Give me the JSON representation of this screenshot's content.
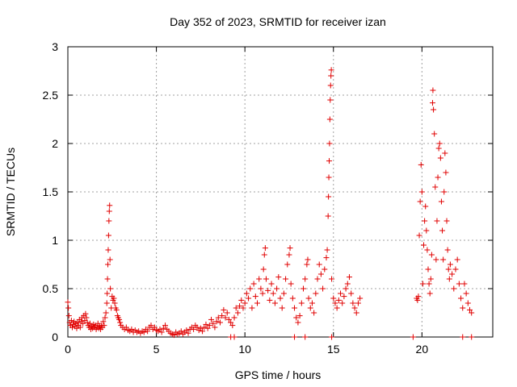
{
  "chart_data": {
    "type": "scatter",
    "title": "Day 352 of 2023, SRMTID for receiver izan",
    "xlabel": "GPS time / hours",
    "ylabel": "SRMTID / TECUs",
    "xlim": [
      0,
      24
    ],
    "ylim": [
      0,
      3
    ],
    "xticks": [
      0,
      5,
      10,
      15,
      20
    ],
    "xtick_labels": [
      "0",
      "5",
      "10",
      "15",
      "20"
    ],
    "yticks": [
      0,
      0.5,
      1,
      1.5,
      2,
      2.5,
      3
    ],
    "ytick_labels": [
      "0",
      "0.5",
      "1",
      "1.5",
      "2",
      "2.5",
      "3"
    ],
    "grid": true,
    "marker": "+",
    "color": "#e00000",
    "series": [
      {
        "name": "SRMTID",
        "points": [
          [
            0.0,
            0.36
          ],
          [
            0.03,
            0.3
          ],
          [
            0.06,
            0.22
          ],
          [
            0.1,
            0.15
          ],
          [
            0.15,
            0.12
          ],
          [
            0.2,
            0.17
          ],
          [
            0.25,
            0.1
          ],
          [
            0.3,
            0.13
          ],
          [
            0.35,
            0.16
          ],
          [
            0.4,
            0.11
          ],
          [
            0.45,
            0.14
          ],
          [
            0.5,
            0.09
          ],
          [
            0.55,
            0.15
          ],
          [
            0.6,
            0.12
          ],
          [
            0.65,
            0.18
          ],
          [
            0.7,
            0.1
          ],
          [
            0.75,
            0.16
          ],
          [
            0.8,
            0.2
          ],
          [
            0.85,
            0.14
          ],
          [
            0.9,
            0.22
          ],
          [
            0.95,
            0.17
          ],
          [
            1.0,
            0.24
          ],
          [
            1.05,
            0.2
          ],
          [
            1.1,
            0.15
          ],
          [
            1.15,
            0.12
          ],
          [
            1.2,
            0.1
          ],
          [
            1.25,
            0.14
          ],
          [
            1.3,
            0.08
          ],
          [
            1.35,
            0.11
          ],
          [
            1.4,
            0.09
          ],
          [
            1.45,
            0.13
          ],
          [
            1.5,
            0.1
          ],
          [
            1.55,
            0.12
          ],
          [
            1.6,
            0.08
          ],
          [
            1.65,
            0.1
          ],
          [
            1.7,
            0.14
          ],
          [
            1.75,
            0.09
          ],
          [
            1.8,
            0.11
          ],
          [
            1.85,
            0.08
          ],
          [
            1.9,
            0.12
          ],
          [
            1.95,
            0.1
          ],
          [
            2.0,
            0.16
          ],
          [
            2.05,
            0.12
          ],
          [
            2.1,
            0.2
          ],
          [
            2.15,
            0.25
          ],
          [
            2.2,
            0.35
          ],
          [
            2.22,
            0.45
          ],
          [
            2.24,
            0.6
          ],
          [
            2.26,
            0.75
          ],
          [
            2.28,
            0.9
          ],
          [
            2.3,
            1.05
          ],
          [
            2.32,
            1.2
          ],
          [
            2.34,
            1.3
          ],
          [
            2.36,
            1.36
          ],
          [
            2.38,
            0.8
          ],
          [
            2.4,
            0.5
          ],
          [
            2.45,
            0.3
          ],
          [
            2.5,
            0.42
          ],
          [
            2.55,
            0.38
          ],
          [
            2.6,
            0.4
          ],
          [
            2.65,
            0.35
          ],
          [
            2.7,
            0.3
          ],
          [
            2.75,
            0.28
          ],
          [
            2.8,
            0.22
          ],
          [
            2.85,
            0.2
          ],
          [
            2.9,
            0.18
          ],
          [
            2.95,
            0.15
          ],
          [
            3.0,
            0.12
          ],
          [
            3.1,
            0.1
          ],
          [
            3.2,
            0.08
          ],
          [
            3.3,
            0.1
          ],
          [
            3.4,
            0.07
          ],
          [
            3.5,
            0.06
          ],
          [
            3.6,
            0.08
          ],
          [
            3.7,
            0.05
          ],
          [
            3.8,
            0.07
          ],
          [
            3.9,
            0.05
          ],
          [
            4.0,
            0.06
          ],
          [
            4.1,
            0.04
          ],
          [
            4.2,
            0.06
          ],
          [
            4.3,
            0.05
          ],
          [
            4.4,
            0.08
          ],
          [
            4.5,
            0.06
          ],
          [
            4.6,
            0.1
          ],
          [
            4.7,
            0.12
          ],
          [
            4.8,
            0.08
          ],
          [
            4.9,
            0.1
          ],
          [
            5.0,
            0.07
          ],
          [
            5.1,
            0.06
          ],
          [
            5.2,
            0.08
          ],
          [
            5.3,
            0.05
          ],
          [
            5.4,
            0.09
          ],
          [
            5.5,
            0.12
          ],
          [
            5.6,
            0.08
          ],
          [
            5.7,
            0.06
          ],
          [
            5.8,
            0.04
          ],
          [
            5.9,
            0.03
          ],
          [
            6.0,
            0.02
          ],
          [
            6.1,
            0.05
          ],
          [
            6.2,
            0.03
          ],
          [
            6.3,
            0.04
          ],
          [
            6.4,
            0.06
          ],
          [
            6.5,
            0.03
          ],
          [
            6.6,
            0.05
          ],
          [
            6.7,
            0.07
          ],
          [
            6.8,
            0.04
          ],
          [
            6.9,
            0.08
          ],
          [
            7.0,
            0.1
          ],
          [
            7.1,
            0.08
          ],
          [
            7.2,
            0.12
          ],
          [
            7.3,
            0.1
          ],
          [
            7.4,
            0.07
          ],
          [
            7.5,
            0.09
          ],
          [
            7.6,
            0.06
          ],
          [
            7.7,
            0.1
          ],
          [
            7.8,
            0.13
          ],
          [
            7.9,
            0.09
          ],
          [
            8.0,
            0.12
          ],
          [
            8.1,
            0.18
          ],
          [
            8.2,
            0.14
          ],
          [
            8.3,
            0.1
          ],
          [
            8.4,
            0.16
          ],
          [
            8.5,
            0.2
          ],
          [
            8.6,
            0.15
          ],
          [
            8.7,
            0.22
          ],
          [
            8.8,
            0.28
          ],
          [
            8.9,
            0.2
          ],
          [
            9.0,
            0.25
          ],
          [
            9.1,
            0.18
          ],
          [
            9.2,
            0.15
          ],
          [
            9.3,
            0.12
          ],
          [
            9.4,
            0.2
          ],
          [
            9.5,
            0.3
          ],
          [
            9.6,
            0.25
          ],
          [
            9.7,
            0.32
          ],
          [
            9.8,
            0.38
          ],
          [
            9.9,
            0.3
          ],
          [
            10.0,
            0.35
          ],
          [
            10.1,
            0.45
          ],
          [
            10.2,
            0.4
          ],
          [
            10.3,
            0.5
          ],
          [
            10.4,
            0.3
          ],
          [
            10.5,
            0.55
          ],
          [
            10.6,
            0.42
          ],
          [
            10.7,
            0.35
          ],
          [
            10.8,
            0.6
          ],
          [
            10.9,
            0.5
          ],
          [
            11.0,
            0.45
          ],
          [
            11.05,
            0.7
          ],
          [
            11.1,
            0.85
          ],
          [
            11.15,
            0.92
          ],
          [
            11.2,
            0.6
          ],
          [
            11.3,
            0.48
          ],
          [
            11.4,
            0.38
          ],
          [
            11.5,
            0.55
          ],
          [
            11.6,
            0.45
          ],
          [
            11.7,
            0.35
          ],
          [
            11.8,
            0.5
          ],
          [
            11.9,
            0.62
          ],
          [
            12.0,
            0.4
          ],
          [
            12.1,
            0.3
          ],
          [
            12.2,
            0.45
          ],
          [
            12.3,
            0.6
          ],
          [
            12.4,
            0.75
          ],
          [
            12.5,
            0.85
          ],
          [
            12.55,
            0.92
          ],
          [
            12.6,
            0.55
          ],
          [
            12.7,
            0.4
          ],
          [
            12.8,
            0.3
          ],
          [
            12.9,
            0.2
          ],
          [
            13.0,
            0.15
          ],
          [
            13.1,
            0.22
          ],
          [
            13.2,
            0.35
          ],
          [
            13.3,
            0.5
          ],
          [
            13.4,
            0.6
          ],
          [
            13.5,
            0.75
          ],
          [
            13.55,
            0.8
          ],
          [
            13.6,
            0.4
          ],
          [
            13.7,
            0.3
          ],
          [
            13.8,
            0.35
          ],
          [
            13.9,
            0.25
          ],
          [
            14.0,
            0.45
          ],
          [
            14.1,
            0.6
          ],
          [
            14.2,
            0.75
          ],
          [
            14.3,
            0.65
          ],
          [
            14.4,
            0.5
          ],
          [
            14.5,
            0.7
          ],
          [
            14.6,
            0.82
          ],
          [
            14.65,
            0.9
          ],
          [
            14.7,
            1.25
          ],
          [
            14.72,
            1.45
          ],
          [
            14.74,
            1.65
          ],
          [
            14.76,
            1.82
          ],
          [
            14.78,
            2.0
          ],
          [
            14.8,
            2.25
          ],
          [
            14.82,
            2.45
          ],
          [
            14.84,
            2.6
          ],
          [
            14.86,
            2.7
          ],
          [
            14.88,
            2.76
          ],
          [
            14.9,
            0.6
          ],
          [
            15.0,
            0.4
          ],
          [
            15.1,
            0.35
          ],
          [
            15.2,
            0.3
          ],
          [
            15.3,
            0.38
          ],
          [
            15.4,
            0.45
          ],
          [
            15.5,
            0.35
          ],
          [
            15.6,
            0.42
          ],
          [
            15.7,
            0.5
          ],
          [
            15.8,
            0.55
          ],
          [
            15.9,
            0.62
          ],
          [
            16.0,
            0.45
          ],
          [
            16.1,
            0.35
          ],
          [
            16.2,
            0.3
          ],
          [
            16.3,
            0.25
          ],
          [
            16.4,
            0.35
          ],
          [
            16.5,
            0.4
          ],
          [
            19.7,
            0.4
          ],
          [
            19.75,
            0.38
          ],
          [
            19.8,
            0.42
          ],
          [
            19.85,
            1.05
          ],
          [
            19.9,
            1.4
          ],
          [
            19.95,
            1.78
          ],
          [
            20.0,
            1.5
          ],
          [
            20.05,
            0.55
          ],
          [
            20.1,
            0.95
          ],
          [
            20.15,
            1.2
          ],
          [
            20.2,
            1.35
          ],
          [
            20.25,
            1.1
          ],
          [
            20.3,
            0.9
          ],
          [
            20.35,
            0.7
          ],
          [
            20.4,
            0.55
          ],
          [
            20.45,
            0.45
          ],
          [
            20.5,
            0.6
          ],
          [
            20.55,
            0.85
          ],
          [
            20.6,
            2.42
          ],
          [
            20.62,
            2.55
          ],
          [
            20.65,
            2.35
          ],
          [
            20.7,
            2.1
          ],
          [
            20.75,
            1.55
          ],
          [
            20.8,
            0.8
          ],
          [
            20.85,
            1.2
          ],
          [
            20.9,
            1.65
          ],
          [
            20.95,
            1.95
          ],
          [
            21.0,
            2.0
          ],
          [
            21.05,
            1.85
          ],
          [
            21.1,
            1.4
          ],
          [
            21.15,
            1.1
          ],
          [
            21.2,
            0.8
          ],
          [
            21.25,
            1.5
          ],
          [
            21.3,
            1.9
          ],
          [
            21.35,
            1.7
          ],
          [
            21.4,
            1.2
          ],
          [
            21.45,
            0.9
          ],
          [
            21.5,
            0.7
          ],
          [
            21.55,
            0.6
          ],
          [
            21.6,
            0.75
          ],
          [
            21.7,
            0.65
          ],
          [
            21.8,
            0.5
          ],
          [
            21.9,
            0.7
          ],
          [
            22.0,
            0.8
          ],
          [
            22.1,
            0.55
          ],
          [
            22.2,
            0.4
          ],
          [
            22.3,
            0.3
          ],
          [
            22.4,
            0.55
          ],
          [
            22.5,
            0.45
          ],
          [
            22.6,
            0.35
          ],
          [
            22.7,
            0.28
          ],
          [
            22.8,
            0.25
          ],
          [
            9.2,
            0.0
          ],
          [
            9.4,
            0.0
          ],
          [
            12.8,
            0.0
          ],
          [
            13.4,
            0.0
          ],
          [
            14.9,
            0.0
          ],
          [
            19.5,
            0.0
          ],
          [
            22.3,
            0.0
          ],
          [
            22.8,
            0.0
          ]
        ]
      }
    ]
  }
}
